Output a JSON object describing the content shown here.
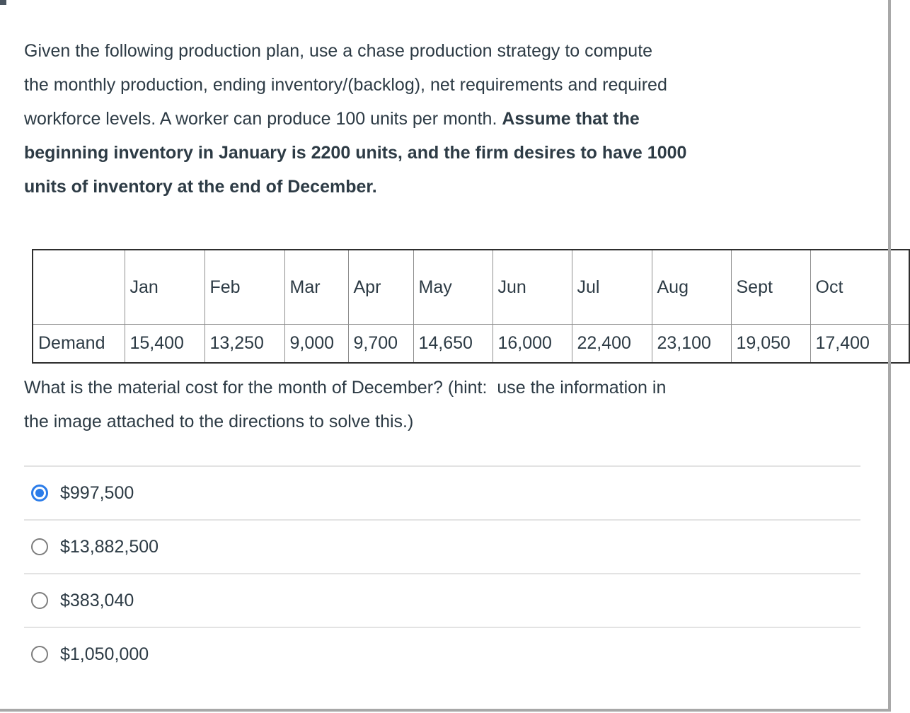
{
  "question": {
    "intro_lines": [
      {
        "normal": "Given the following production plan, use a chase production strategy to compute",
        "bold": ""
      },
      {
        "normal": "the monthly production, ending inventory/(backlog), net requirements and required",
        "bold": ""
      },
      {
        "normal": "workforce levels. A worker can produce 100 units per month. ",
        "bold": "Assume that the"
      },
      {
        "normal": "",
        "bold": "beginning inventory in January is 2200 units, and the firm desires to have 1000"
      },
      {
        "normal": "",
        "bold": "units of inventory at the end of December."
      }
    ],
    "prompt_lines": [
      "What is the material cost for the month of December? (hint:  use the information in",
      "the image attached to the directions to solve this.)"
    ]
  },
  "table": {
    "row_header": "Demand",
    "columns": [
      "Jan",
      "Feb",
      "Mar",
      "Apr",
      "May",
      "Jun",
      "Jul",
      "Aug",
      "Sept",
      "Oct"
    ],
    "demand": [
      "15,400",
      "13,250",
      "9,000",
      "9,700",
      "14,650",
      "16,000",
      "22,400",
      "23,100",
      "19,050",
      "17,400"
    ]
  },
  "options": [
    {
      "label": "$997,500",
      "selected": true
    },
    {
      "label": "$13,882,500",
      "selected": false
    },
    {
      "label": "$383,040",
      "selected": false
    },
    {
      "label": "$1,050,000",
      "selected": false
    }
  ],
  "colors": {
    "text": "#2D3B45",
    "radio_selected": "#2b7ce9",
    "radio_border": "#7d7d7d",
    "divider": "#e3e3e3",
    "frame": "#a8a8a8",
    "table_outer_border": "#2e2e2e",
    "table_inner_border": "#8f8f8f"
  }
}
